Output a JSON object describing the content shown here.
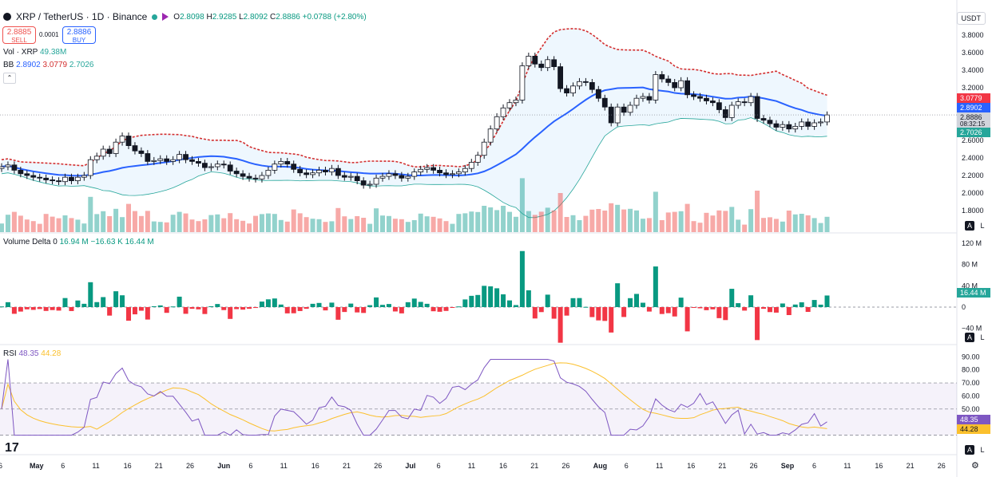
{
  "header": {
    "symbol": "XRP / TetherUS · 1D · Binance",
    "open_label": "O",
    "open": "2.8098",
    "high_label": "H",
    "high": "2.9285",
    "low_label": "L",
    "low": "2.8092",
    "close_label": "C",
    "close": "2.8886",
    "change": "+0.0788 (+2.80%)"
  },
  "trade": {
    "sell_price": "2.8885",
    "sell_label": "SELL",
    "spread": "0.0001",
    "buy_price": "2.8886",
    "buy_label": "BUY"
  },
  "indicators": {
    "vol_label": "Vol · XRP",
    "vol_value": "49.38M",
    "bb_label": "BB",
    "bb_mid": "2.8902",
    "bb_upper": "3.0779",
    "bb_lower": "2.7026",
    "vd_label": "Volume Delta",
    "vd_v1": "0",
    "vd_v2": "16.94 M",
    "vd_v3": "−16.63 K",
    "vd_v4": "16.44 M",
    "rsi_label": "RSI",
    "rsi_value": "48.35",
    "rsi_ma": "44.28"
  },
  "price_tags": {
    "upper": "3.0779",
    "mid": "2.8902",
    "last": "2.8886",
    "countdown": "08:32:15",
    "lower": "2.7026",
    "vd": "16.44 M",
    "rsi": "48.35",
    "rsi_ma": "44.28"
  },
  "currency": "USDT",
  "colors": {
    "up": "#089981",
    "down": "#f23645",
    "bb_mid": "#2962ff",
    "bb_upper": "#d32f2f",
    "bb_lower": "#26a69a",
    "rsi": "#7e57c2",
    "rsi_ma": "#fbc02d"
  },
  "chart_data": [
    {
      "type": "candlestick",
      "title": "XRP / TetherUS · 1D · Binance",
      "yticks": [
        1.8,
        2.0,
        2.2,
        2.4,
        2.6,
        2.8,
        3.0,
        3.2,
        3.4,
        3.6,
        3.8
      ],
      "ylim": [
        1.72,
        3.95
      ],
      "xticks": [
        "6",
        "May",
        "6",
        "11",
        "16",
        "21",
        "26",
        "Jun",
        "6",
        "11",
        "16",
        "21",
        "26",
        "Jul",
        "6",
        "11",
        "16",
        "21",
        "26",
        "Aug",
        "6",
        "11",
        "16",
        "21",
        "26",
        "Sep",
        "6",
        "11",
        "16",
        "21",
        "26"
      ],
      "close": [
        2.3,
        2.32,
        2.26,
        2.22,
        2.2,
        2.18,
        2.17,
        2.15,
        2.14,
        2.13,
        2.18,
        2.14,
        2.18,
        2.2,
        2.38,
        2.42,
        2.5,
        2.45,
        2.58,
        2.65,
        2.54,
        2.48,
        2.45,
        2.36,
        2.37,
        2.39,
        2.36,
        2.38,
        2.44,
        2.38,
        2.36,
        2.34,
        2.29,
        2.3,
        2.33,
        2.32,
        2.25,
        2.22,
        2.19,
        2.17,
        2.16,
        2.2,
        2.26,
        2.33,
        2.36,
        2.33,
        2.27,
        2.23,
        2.21,
        2.23,
        2.26,
        2.24,
        2.28,
        2.2,
        2.18,
        2.19,
        2.14,
        2.09,
        2.1,
        2.17,
        2.19,
        2.22,
        2.2,
        2.17,
        2.19,
        2.24,
        2.27,
        2.29,
        2.26,
        2.23,
        2.21,
        2.22,
        2.24,
        2.28,
        2.35,
        2.43,
        2.58,
        2.73,
        2.87,
        2.97,
        3.03,
        3.06,
        3.45,
        3.56,
        3.47,
        3.43,
        3.52,
        3.44,
        3.19,
        3.14,
        3.22,
        3.27,
        3.26,
        3.18,
        3.08,
        2.98,
        2.8,
        2.98,
        2.92,
        3.0,
        3.08,
        3.1,
        3.06,
        3.35,
        3.3,
        3.26,
        3.2,
        3.28,
        3.12,
        3.1,
        3.08,
        3.05,
        3.03,
        2.95,
        2.86,
        3.0,
        3.04,
        3.03,
        3.1,
        2.85,
        2.83,
        2.79,
        2.75,
        2.78,
        2.73,
        2.76,
        2.81,
        2.76,
        2.8,
        2.81,
        2.89
      ],
      "volume_delta_range": [
        -60,
        120
      ],
      "rsi": {
        "value": 48.35,
        "ma": 44.28,
        "levels": [
          30,
          50,
          70
        ],
        "ylim": [
          20,
          92
        ]
      }
    }
  ]
}
